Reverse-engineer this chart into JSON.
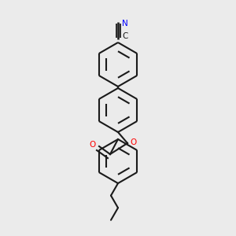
{
  "bg_color": "#ebebeb",
  "bond_color": "#1a1a1a",
  "nitrogen_color": "#0000ff",
  "oxygen_color": "#ff0000",
  "lw": 1.5,
  "figsize": [
    3.0,
    3.0
  ],
  "dpi": 100,
  "cn_label_N": "N",
  "cn_label_C": "C",
  "o_label": "O",
  "o2_label": "O"
}
